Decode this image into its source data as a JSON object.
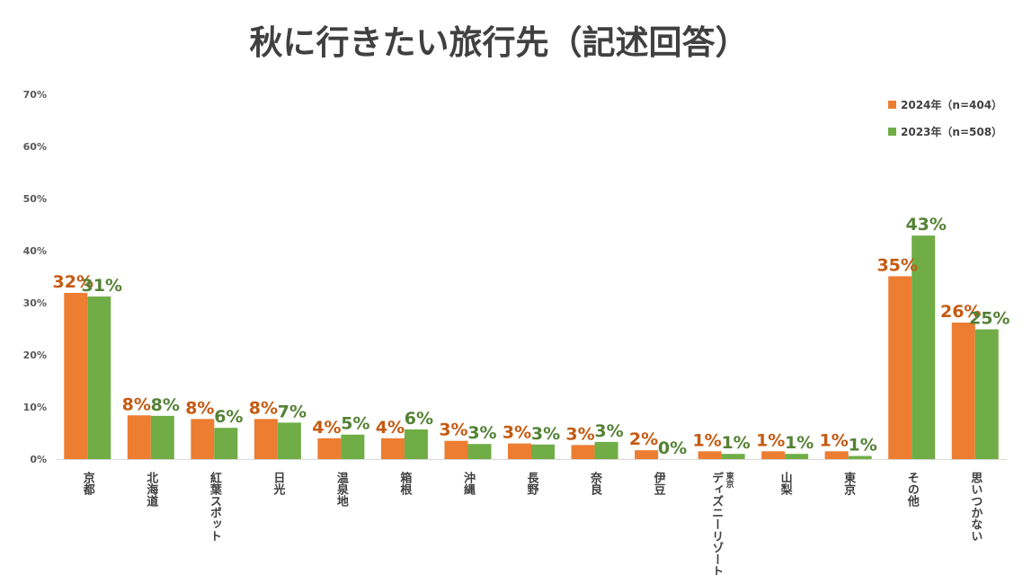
{
  "chart_data": {
    "type": "bar",
    "title": "秋に行きたい旅行先（記述回答）",
    "y_ticks": [
      "0%",
      "10%",
      "20%",
      "30%",
      "40%",
      "50%",
      "60%",
      "70%"
    ],
    "ylim": [
      0,
      70
    ],
    "grid": false,
    "legend_position": "top-right",
    "categories": [
      {
        "lines": [
          "京都"
        ]
      },
      {
        "lines": [
          "北海道"
        ]
      },
      {
        "lines": [
          "紅葉スポット"
        ]
      },
      {
        "lines": [
          "日光"
        ]
      },
      {
        "lines": [
          "温泉地"
        ]
      },
      {
        "lines": [
          "箱根"
        ]
      },
      {
        "lines": [
          "沖縄"
        ]
      },
      {
        "lines": [
          "長野"
        ]
      },
      {
        "lines": [
          "奈良"
        ]
      },
      {
        "lines": [
          "伊豆"
        ]
      },
      {
        "lines": [
          "東京",
          "ディズニーリゾート"
        ]
      },
      {
        "lines": [
          "山梨"
        ]
      },
      {
        "lines": [
          "東京"
        ]
      },
      {
        "lines": [
          "その他"
        ]
      },
      {
        "lines": [
          "思いつかない"
        ]
      }
    ],
    "series": [
      {
        "name": "2024年（n=404）",
        "color": "#ED7D31",
        "label_color": "#C55A11",
        "values": [
          31.9,
          8.4,
          7.7,
          7.7,
          4.0,
          4.0,
          3.5,
          3.0,
          2.7,
          1.7,
          1.5,
          1.5,
          1.5,
          35.1,
          26.2
        ],
        "labels": [
          "32%",
          "8%",
          "8%",
          "8%",
          "4%",
          "4%",
          "3%",
          "3%",
          "3%",
          "2%",
          "1%",
          "1%",
          "1%",
          "35%",
          "26%"
        ]
      },
      {
        "name": "2023年（n=508）",
        "color": "#70AD47",
        "label_color": "#548235",
        "values": [
          31.2,
          8.3,
          6.0,
          7.0,
          4.7,
          5.7,
          2.9,
          2.8,
          3.3,
          0.0,
          1.0,
          1.0,
          0.6,
          42.9,
          24.9
        ],
        "labels": [
          "31%",
          "8%",
          "6%",
          "7%",
          "5%",
          "6%",
          "3%",
          "3%",
          "3%",
          "0%",
          "1%",
          "1%",
          "1%",
          "43%",
          "25%"
        ]
      }
    ]
  }
}
